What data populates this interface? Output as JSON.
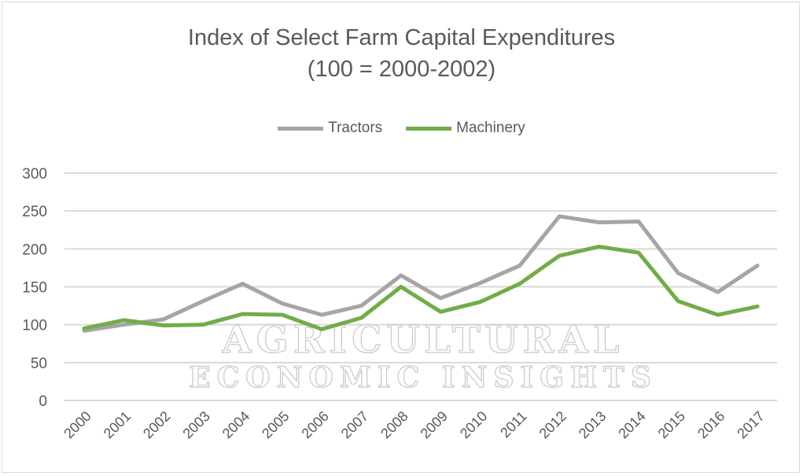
{
  "chart_data": {
    "type": "line",
    "title": "Index of Select Farm Capital Expenditures",
    "subtitle": "(100 = 2000-2002)",
    "xlabel": "",
    "ylabel": "",
    "ylim": [
      0,
      300
    ],
    "yticks": [
      0,
      50,
      100,
      150,
      200,
      250,
      300
    ],
    "grid": true,
    "legend_position": "top",
    "categories": [
      "2000",
      "2001",
      "2002",
      "2003",
      "2004",
      "2005",
      "2006",
      "2007",
      "2008",
      "2009",
      "2010",
      "2011",
      "2012",
      "2013",
      "2014",
      "2015",
      "2016",
      "2017"
    ],
    "series": [
      {
        "name": "Tractors",
        "color": "#a5a5a5",
        "values": [
          92,
          100,
          107,
          131,
          154,
          128,
          113,
          125,
          165,
          135,
          155,
          178,
          243,
          235,
          236,
          168,
          143,
          178
        ]
      },
      {
        "name": "Machinery",
        "color": "#70ad47",
        "values": [
          95,
          106,
          99,
          100,
          114,
          113,
          94,
          109,
          150,
          117,
          130,
          154,
          191,
          203,
          195,
          131,
          113,
          124
        ]
      }
    ]
  },
  "watermark": [
    "AGRICULTURAL",
    "ECONOMIC INSIGHTS"
  ]
}
